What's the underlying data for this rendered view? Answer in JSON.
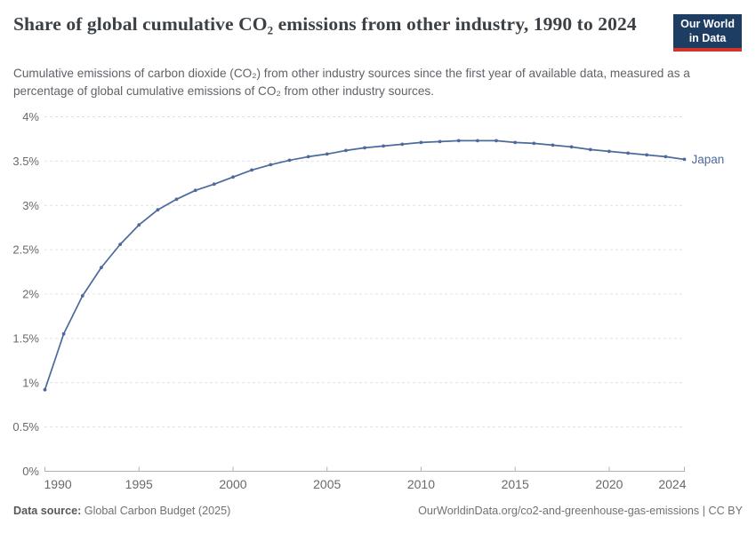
{
  "header": {
    "title": "Share of global cumulative CO₂ emissions from other industry, 1990 to 2024",
    "logo": {
      "line1": "Our World",
      "line2": "in Data"
    }
  },
  "subtitle": "Cumulative emissions of carbon dioxide (CO₂) from other industry sources since the first year of available data, measured as a percentage of global cumulative emissions of CO₂ from other industry sources.",
  "footer": {
    "source_label": "Data source:",
    "source_value": "Global Carbon Budget (2025)",
    "attribution": "OurWorldinData.org/co2-and-greenhouse-gas-emissions | CC BY"
  },
  "colors": {
    "series": "#4C6A9C",
    "grid": "#e0e0e0",
    "axis": "#aeb2b5",
    "tick_text": "#67696b",
    "logo_bg": "#1d3d63",
    "logo_stripe": "#d0342c"
  },
  "chart_data": {
    "type": "line",
    "title": "Share of global cumulative CO₂ emissions from other industry, 1990 to 2024",
    "xlabel": "",
    "ylabel": "",
    "xlim": [
      1990,
      2024
    ],
    "ylim": [
      0,
      4
    ],
    "grid": "horizontal-dashed",
    "legend_position": "end-of-line-label",
    "yticks": [
      0,
      0.5,
      1,
      1.5,
      2,
      2.5,
      3,
      3.5,
      4
    ],
    "ytick_labels": [
      "0%",
      "0.5%",
      "1%",
      "1.5%",
      "2%",
      "2.5%",
      "3%",
      "3.5%",
      "4%"
    ],
    "xticks": [
      1990,
      1995,
      2000,
      2005,
      2010,
      2015,
      2020,
      2024
    ],
    "xtick_labels": [
      "1990",
      "1995",
      "2000",
      "2005",
      "2010",
      "2015",
      "2020",
      "2024"
    ],
    "x": [
      1990,
      1991,
      1992,
      1993,
      1994,
      1995,
      1996,
      1997,
      1998,
      1999,
      2000,
      2001,
      2002,
      2003,
      2004,
      2005,
      2006,
      2007,
      2008,
      2009,
      2010,
      2011,
      2012,
      2013,
      2014,
      2015,
      2016,
      2017,
      2018,
      2019,
      2020,
      2021,
      2022,
      2023,
      2024
    ],
    "series": [
      {
        "name": "Japan",
        "values": [
          0.92,
          1.55,
          1.98,
          2.3,
          2.56,
          2.78,
          2.95,
          3.07,
          3.17,
          3.24,
          3.32,
          3.4,
          3.46,
          3.51,
          3.55,
          3.58,
          3.62,
          3.65,
          3.67,
          3.69,
          3.71,
          3.72,
          3.73,
          3.73,
          3.73,
          3.71,
          3.7,
          3.68,
          3.66,
          3.63,
          3.61,
          3.59,
          3.57,
          3.55,
          3.52
        ]
      }
    ]
  }
}
